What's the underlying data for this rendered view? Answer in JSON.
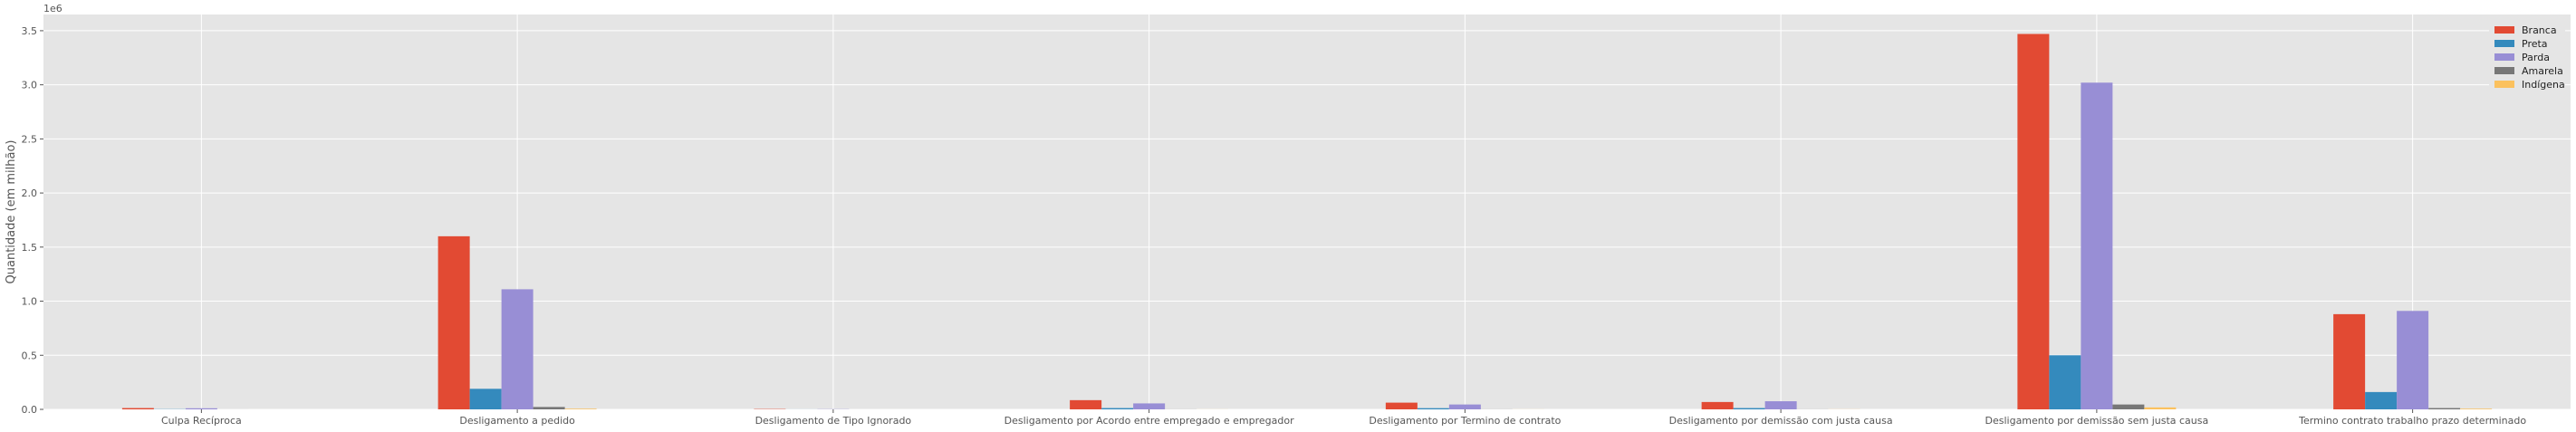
{
  "chart_data": {
    "type": "bar",
    "ylabel": "Quantidade (em milhão)",
    "scale_label": "1e6",
    "ylim": [
      0,
      3.65
    ],
    "yticks": [
      "0.0",
      "0.5",
      "1.0",
      "1.5",
      "2.0",
      "2.5",
      "3.0",
      "3.5"
    ],
    "grid": true,
    "legend_position": "top-right",
    "categories": [
      "Culpa Recíproca",
      "Desligamento a pedido",
      "Desligamento de Tipo Ignorado",
      "Desligamento por Acordo entre empregado e empregador",
      "Desligamento por Termino de contrato",
      "Desligamento por demissão com justa causa",
      "Desligamento por demissão sem justa causa",
      "Termino contrato trabalho prazo determinado"
    ],
    "series": [
      {
        "name": "Branca",
        "color": "#E24A33",
        "values": [
          0.012,
          1.6,
          0.003,
          0.085,
          0.062,
          0.068,
          3.47,
          0.88
        ]
      },
      {
        "name": "Preta",
        "color": "#348ABD",
        "values": [
          0.002,
          0.19,
          0.0005,
          0.012,
          0.011,
          0.012,
          0.5,
          0.16
        ]
      },
      {
        "name": "Parda",
        "color": "#988ED5",
        "values": [
          0.01,
          1.11,
          0.002,
          0.055,
          0.045,
          0.075,
          3.02,
          0.91
        ]
      },
      {
        "name": "Amarela",
        "color": "#777777",
        "values": [
          0.0002,
          0.022,
          0.0001,
          0.001,
          0.001,
          0.001,
          0.045,
          0.012
        ]
      },
      {
        "name": "Indígena",
        "color": "#FBC15E",
        "values": [
          0.0001,
          0.006,
          0.0001,
          0.0005,
          0.0005,
          0.001,
          0.018,
          0.006
        ]
      }
    ]
  }
}
